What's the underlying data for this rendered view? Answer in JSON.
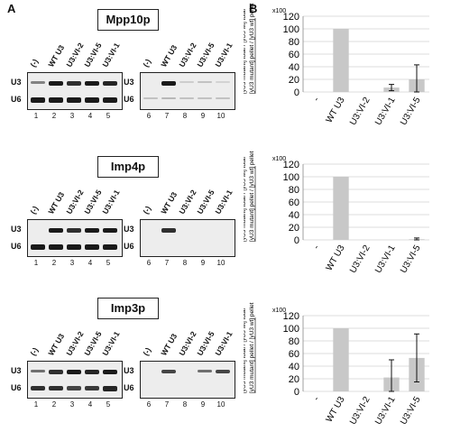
{
  "panel_a_label": "A",
  "panel_b_label": "B",
  "sections": [
    {
      "protein": "Mpp10p",
      "left_lanes": [
        "(-)",
        "WT U3",
        "U3:VI-2",
        "U3:VI-5",
        "U3:VI-1"
      ],
      "right_lanes": [
        "(-)",
        "WT U3",
        "U3:VI-2",
        "U3:VI-5",
        "U3:VI-1"
      ],
      "left_nums": [
        "1",
        "2",
        "3",
        "4",
        "5"
      ],
      "right_nums": [
        "6",
        "7",
        "8",
        "9",
        "10"
      ]
    },
    {
      "protein": "Imp4p",
      "left_lanes": [
        "(-)",
        "WT U3",
        "U3:VI-2",
        "U3:VI-5",
        "U3:VI-1"
      ],
      "right_lanes": [
        "(-)",
        "WT U3",
        "U3:VI-2",
        "U3:VI-5",
        "U3:VI-1"
      ],
      "left_nums": [
        "1",
        "2",
        "3",
        "4",
        "5"
      ],
      "right_nums": [
        "6",
        "7",
        "8",
        "9",
        "10"
      ]
    },
    {
      "protein": "Imp3p",
      "left_lanes": [
        "(-)",
        "WT U3",
        "U3:VI-2",
        "U3:VI-5",
        "U3:VI-1"
      ],
      "right_lanes": [
        "(-)",
        "WT U3",
        "U3:VI-2",
        "U3:VI-5",
        "U3:VI-1"
      ],
      "left_nums": [
        "1",
        "2",
        "3",
        "4",
        "5"
      ],
      "right_nums": [
        "6",
        "7",
        "8",
        "9",
        "10"
      ]
    }
  ],
  "row_labels": {
    "u3": "U3",
    "u6": "U6"
  },
  "chart_data": [
    {
      "type": "bar",
      "categories": [
        "-",
        "WT U3",
        "U3:VI-2",
        "U3:VI-1",
        "U3:VI-5"
      ],
      "values": [
        0,
        100,
        0,
        7,
        20
      ],
      "errors": [
        0,
        0,
        0,
        5,
        23
      ],
      "ylim": [
        0,
        120
      ],
      "yticks": [
        0,
        20,
        40,
        60,
        80,
        100,
        120
      ],
      "multiplier": "x100",
      "ylabel_top": "[yU3 mutant] pellet / [yU3 wt] pellet",
      "ylabel_bottom": "[yU3 mutant] total / [yU3 wt] total",
      "bar_color": "#c8c8c8"
    },
    {
      "type": "bar",
      "categories": [
        "-",
        "WT U3",
        "U3:VI-2",
        "U3:VI-1",
        "U3:VI-5"
      ],
      "values": [
        0,
        100,
        0,
        0,
        1
      ],
      "errors": [
        0,
        0,
        0,
        0,
        2
      ],
      "ylim": [
        0,
        120
      ],
      "yticks": [
        0,
        20,
        40,
        60,
        80,
        100,
        120
      ],
      "multiplier": "x100",
      "ylabel_top": "[yU3 mutant] pellet / [yU3 wt] pellet",
      "ylabel_bottom": "[yU3 mutant] total / [yU3 wt] total",
      "bar_color": "#c8c8c8"
    },
    {
      "type": "bar",
      "categories": [
        "-",
        "WT U3",
        "U3:VI-2",
        "U3:VI-1",
        "U3:VI-5"
      ],
      "values": [
        0,
        100,
        0,
        22,
        53
      ],
      "errors": [
        0,
        0,
        0,
        28,
        38
      ],
      "ylim": [
        0,
        120
      ],
      "yticks": [
        0,
        20,
        40,
        60,
        80,
        100,
        120
      ],
      "multiplier": "x100",
      "ylabel_top": "[yU3 mutant] pellet / [yU3 wt] pellet",
      "ylabel_bottom": "[yU3 mutant] total / [yU3 wt] total",
      "bar_color": "#c8c8c8"
    }
  ]
}
